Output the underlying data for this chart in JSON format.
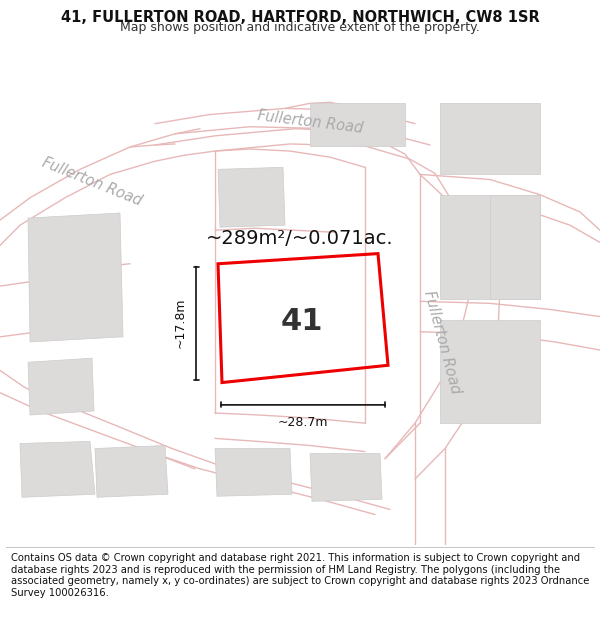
{
  "title": "41, FULLERTON ROAD, HARTFORD, NORTHWICH, CW8 1SR",
  "subtitle": "Map shows position and indicative extent of the property.",
  "footer": "Contains OS data © Crown copyright and database right 2021. This information is subject to Crown copyright and database rights 2023 and is reproduced with the permission of HM Land Registry. The polygons (including the associated geometry, namely x, y co-ordinates) are subject to Crown copyright and database rights 2023 Ordnance Survey 100026316.",
  "area_label": "~289m²/~0.071ac.",
  "property_number": "41",
  "dim_width": "~28.7m",
  "dim_height": "~17.8m",
  "road_label_topleft": "Fullerton Road",
  "road_label_topright": "Fullerton Road",
  "road_label_right": "Fullerton Road",
  "map_bg": "#f5f2f2",
  "building_face": "#dddada",
  "building_edge": "#cccccc",
  "road_line": "#e8b8b8",
  "red_color": "#ee0000",
  "dim_color": "#111111",
  "title_fontsize": 10.5,
  "subtitle_fontsize": 9,
  "footer_fontsize": 7.2,
  "area_fontsize": 14,
  "num_fontsize": 22,
  "road_label_fontsize": 10.5,
  "dim_fontsize": 9
}
